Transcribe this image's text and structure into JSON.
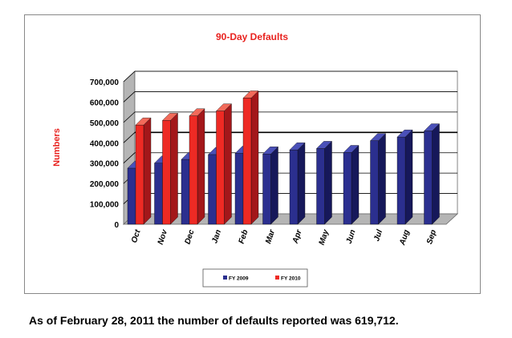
{
  "caption": "As of February 28, 2011 the number of defaults reported was 619,712.",
  "colors": {
    "title": "#e8221f",
    "ylabel": "#e8221f",
    "fy2009_front": "#2b2f8f",
    "fy2009_side": "#16185a",
    "fy2009_top": "#4a50b8",
    "fy2010_front": "#ee2a24",
    "fy2010_side": "#a3171a",
    "fy2010_top": "#f26a5a",
    "wall": "#b5b5b5",
    "floor": "#b5b5b5",
    "grid": "#000000"
  },
  "chart_data": {
    "type": "bar",
    "style": "3d-clustered",
    "title": "90-Day Defaults",
    "xlabel": "",
    "ylabel": "Numbers",
    "ylim": [
      0,
      700000
    ],
    "yticks": [
      0,
      100000,
      200000,
      300000,
      400000,
      500000,
      600000,
      700000
    ],
    "ytick_labels": [
      "0",
      "100,000",
      "200,000",
      "300,000",
      "400,000",
      "500,000",
      "600,000",
      "700,000"
    ],
    "grid": true,
    "legend_position": "bottom",
    "categories": [
      "Oct",
      "Nov",
      "Dec",
      "Jan",
      "Feb",
      "Mar",
      "Apr",
      "May",
      "Jun",
      "Jul",
      "Aug",
      "Sep"
    ],
    "series": [
      {
        "name": "FY 2009",
        "values": [
          275000,
          300000,
          318000,
          342000,
          348000,
          345000,
          365000,
          372000,
          352000,
          410000,
          428000,
          458000
        ]
      },
      {
        "name": "FY 2010",
        "values": [
          487000,
          510000,
          532000,
          556000,
          619712,
          null,
          null,
          null,
          null,
          null,
          null,
          null
        ]
      }
    ]
  }
}
